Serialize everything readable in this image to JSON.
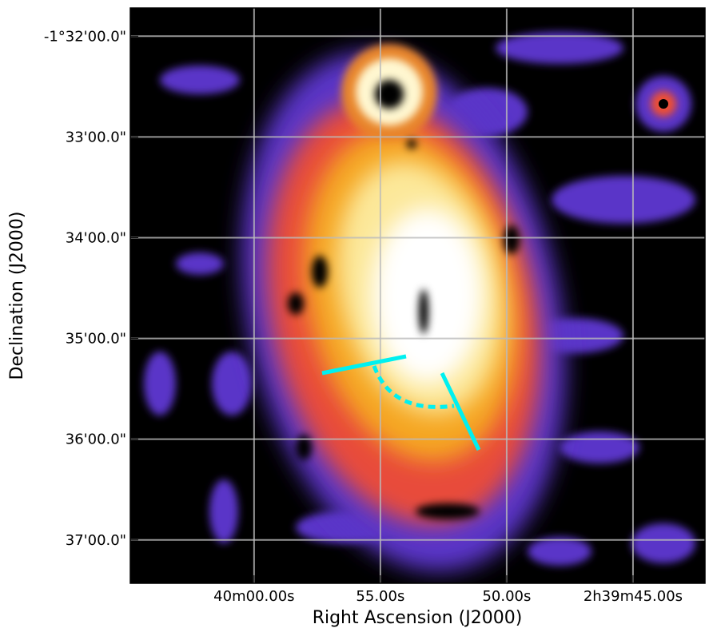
{
  "chart_data": {
    "type": "image",
    "xlabel": "Right Ascension (J2000)",
    "ylabel": "Declination (J2000)",
    "xlim": [
      64.9,
      42.15
    ],
    "ylim": [
      -37.43,
      -31.72
    ],
    "xticks": [
      {
        "value": 60,
        "label": "40m00.00s"
      },
      {
        "value": 55,
        "label": "55.00s"
      },
      {
        "value": 50,
        "label": "50.00s"
      },
      {
        "value": 45,
        "label": "2h39m45.00s"
      }
    ],
    "yticks": [
      {
        "value": -32,
        "label": "-1°32'00.0\""
      },
      {
        "value": -33,
        "label": "33'00.0\""
      },
      {
        "value": -34,
        "label": "34'00.0\""
      },
      {
        "value": -35,
        "label": "35'00.0\""
      },
      {
        "value": -36,
        "label": "36'00.0\""
      },
      {
        "value": -37,
        "label": "37'00.0\""
      }
    ],
    "grid": true,
    "grid_color": "#bbbbbb"
  }
}
